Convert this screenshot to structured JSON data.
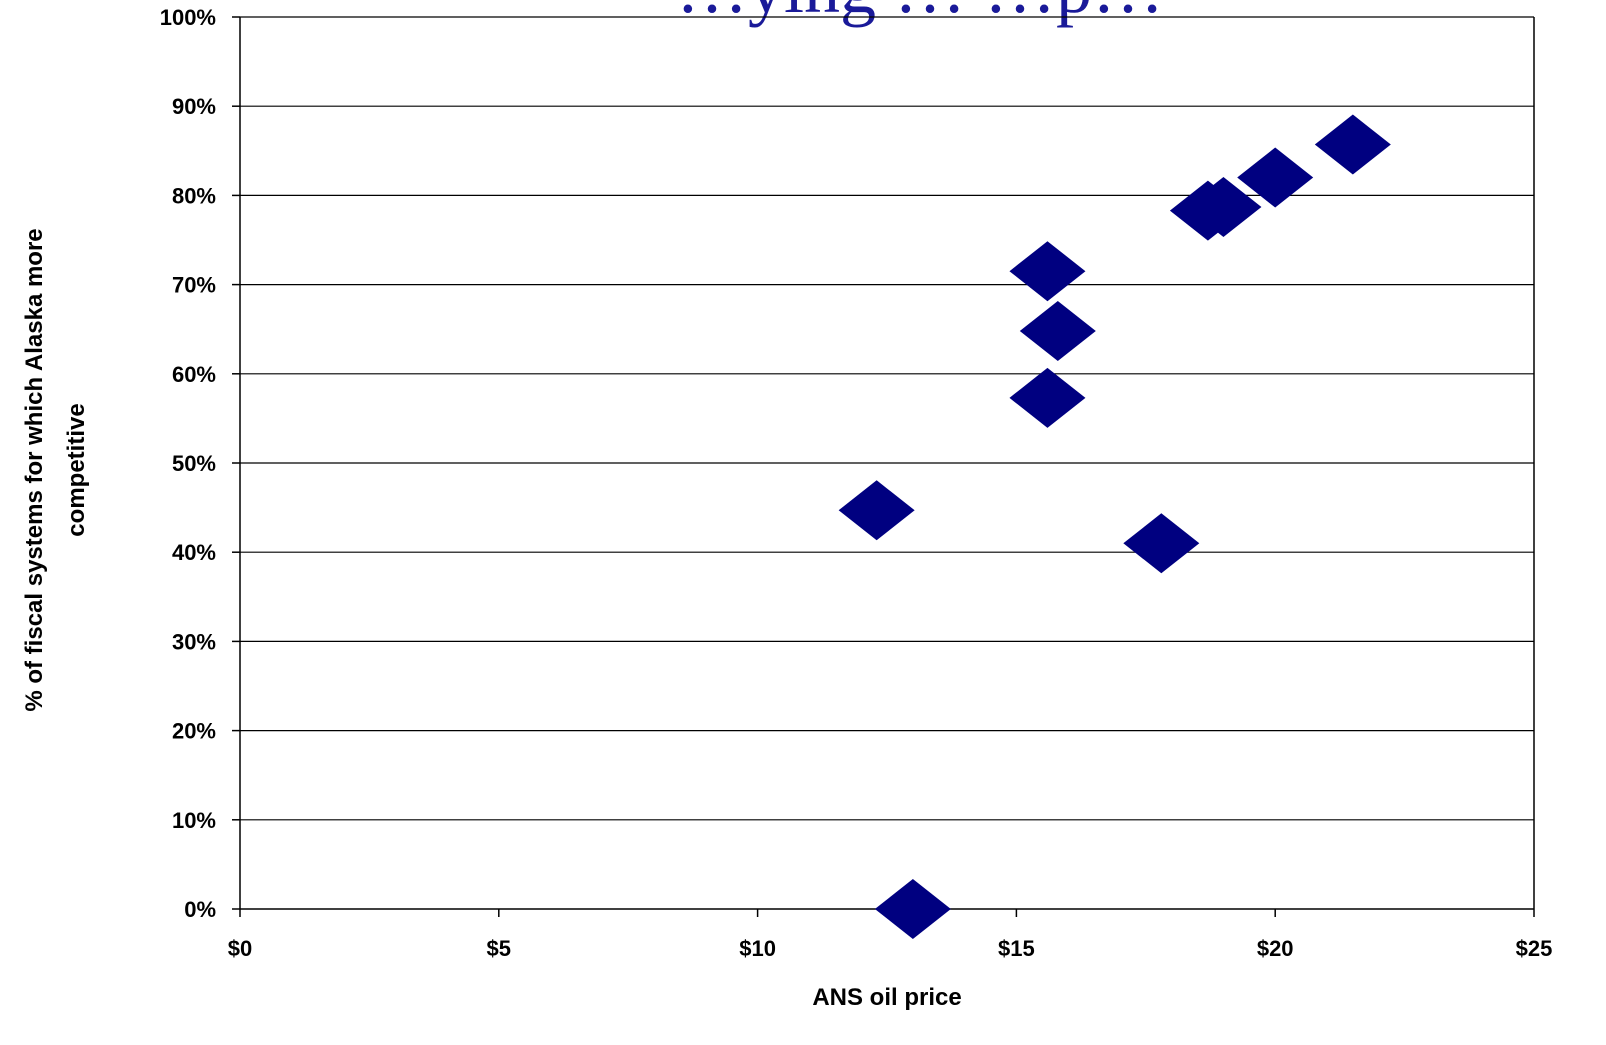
{
  "chart_data": {
    "type": "scatter",
    "title": "…ying … …p…",
    "xlabel": "ANS oil price",
    "ylabel_line1": "% of fiscal systems for which Alaska more",
    "ylabel_line2": "competitive",
    "xlim": [
      0,
      25
    ],
    "ylim": [
      0,
      1
    ],
    "x_ticks": [
      0,
      5,
      10,
      15,
      20,
      25
    ],
    "x_tick_labels": [
      "$0",
      "$5",
      "$10",
      "$15",
      "$20",
      "$25"
    ],
    "y_ticks": [
      0,
      0.1,
      0.2,
      0.3,
      0.4,
      0.5,
      0.6,
      0.7,
      0.8,
      0.9,
      1.0
    ],
    "y_tick_labels": [
      "0%",
      "10%",
      "20%",
      "30%",
      "40%",
      "50%",
      "60%",
      "70%",
      "80%",
      "90%",
      "100%"
    ],
    "grid": "horizontal",
    "marker": "diamond",
    "marker_color": "#000080",
    "points": [
      {
        "x": 13.0,
        "y": 0.0
      },
      {
        "x": 12.3,
        "y": 0.447
      },
      {
        "x": 15.6,
        "y": 0.573
      },
      {
        "x": 15.8,
        "y": 0.648
      },
      {
        "x": 15.6,
        "y": 0.715
      },
      {
        "x": 17.8,
        "y": 0.41
      },
      {
        "x": 18.7,
        "y": 0.783
      },
      {
        "x": 19.0,
        "y": 0.787
      },
      {
        "x": 20.0,
        "y": 0.82
      },
      {
        "x": 21.5,
        "y": 0.857
      }
    ]
  }
}
